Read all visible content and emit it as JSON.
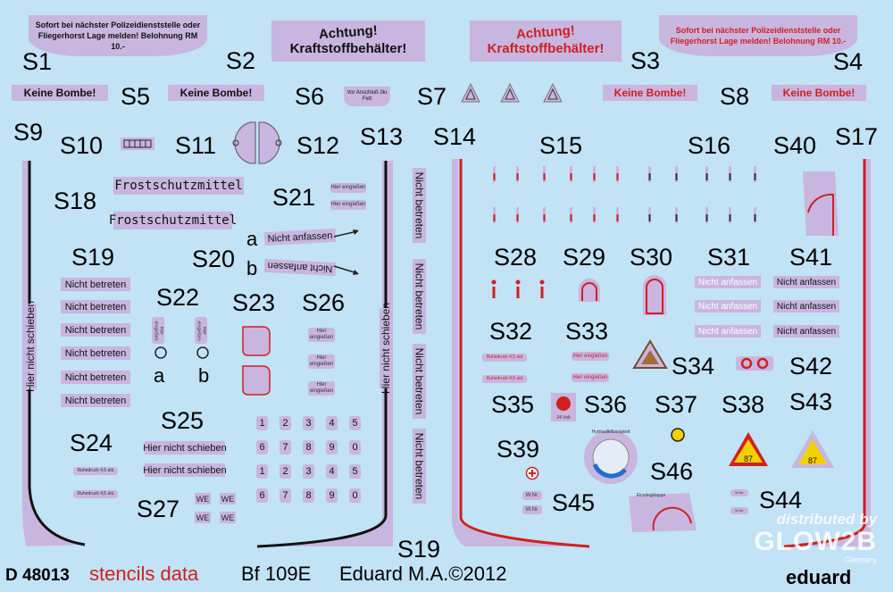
{
  "labels": {
    "s1": "S1",
    "s2": "S2",
    "s3": "S3",
    "s4": "S4",
    "s5": "S5",
    "s6": "S6",
    "s7": "S7",
    "s8": "S8",
    "s9": "S9",
    "s10": "S10",
    "s11": "S11",
    "s12": "S12",
    "s13": "S13",
    "s14": "S14",
    "s15": "S15",
    "s16": "S16",
    "s17": "S17",
    "s18": "S18",
    "s19": "S19",
    "s19b": "S19",
    "s20": "S20",
    "s21": "S21",
    "s22": "S22",
    "s23": "S23",
    "s24": "S24",
    "s25": "S25",
    "s26": "S26",
    "s27": "S27",
    "s28": "S28",
    "s29": "S29",
    "s30": "S30",
    "s31": "S31",
    "s32": "S32",
    "s33": "S33",
    "s34": "S34",
    "s35": "S35",
    "s36": "S36",
    "s37": "S37",
    "s38": "S38",
    "s39": "S39",
    "s40": "S40",
    "s41": "S41",
    "s42": "S42",
    "s43": "S43",
    "s44": "S44",
    "s45": "S45",
    "s46": "S46",
    "a1": "a",
    "b1": "b",
    "a2": "a",
    "b2": "b"
  },
  "decals": {
    "s1_text": "Sofort bei nächster Polizeidienststelle oder Fliegerhorst Lage melden! Belohnung RM 10.-",
    "s4_text": "Sofort bei nächster Polizeidienststelle oder Fliegerhorst Lage melden! Belohnung RM 10.-",
    "s2_line1": "Achtung!",
    "s2_line2": "Kraftstoffbehälter!",
    "s3_line1": "Achtung!",
    "s3_line2": "Kraftstoffbehälter!",
    "keine_bombe": "Keine Bombe!",
    "s6_text": "Vor Anschluß ölu Fett",
    "frost": "Frostschutzmittel",
    "hier_eingieften": "Hier eingießen",
    "nicht_anfassen": "Nicht anfassen",
    "nicht_betreten": "Nicht betreten",
    "hier_nicht_schieben": "Hier nicht schieben",
    "we": "WE",
    "volt": "24 Volt",
    "fluid": "Hydraulikflüssigkeit",
    "ruhedruck": "Ruhedruck 4,5 atü",
    "einstiegklappe": "Einstiegklappe",
    "wnr": "W.Nr.",
    "triangle_num": "87",
    "numbers_row": [
      "1",
      "2",
      "3",
      "4",
      "5",
      "6",
      "7",
      "8",
      "9",
      "0"
    ]
  },
  "footer": {
    "code": "D 48013",
    "stencils": "stencils data",
    "model": "Bf 109E",
    "credit": "Eduard M.A.©2012",
    "brand": "eduard",
    "watermark_line1": "distributed by",
    "watermark_line2": "GLOW2B",
    "watermark_line3": "Germany"
  },
  "colors": {
    "background": "#c2e2f5",
    "decal": "#c8b6e0",
    "red": "#d11f1f",
    "black": "#111111",
    "yellow": "#f2d100"
  }
}
